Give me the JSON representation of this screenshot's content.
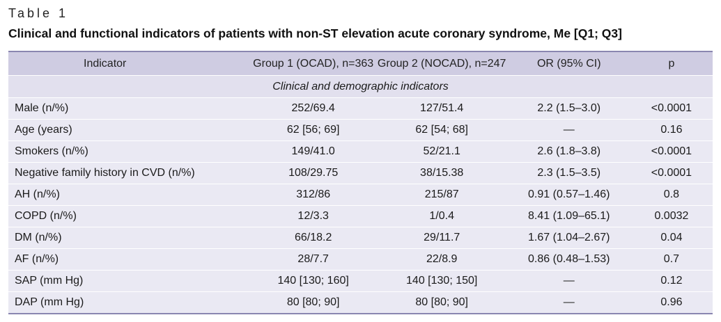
{
  "table_label": "Table 1",
  "table_title": "Clinical and functional indicators of patients with non-ST elevation acute coronary syndrome, Me [Q1; Q3]",
  "headers": [
    "Indicator",
    "Group 1 (OCAD), n=363",
    "Group 2 (NOCAD), n=247",
    "OR (95% CI)",
    "p"
  ],
  "section": "Clinical and demographic indicators",
  "rows": [
    [
      "Male (n/%)",
      "252/69.4",
      "127/51.4",
      "2.2 (1.5–3.0)",
      "<0.0001"
    ],
    [
      "Age (years)",
      "62 [56; 69]",
      "62 [54; 68]",
      "—",
      "0.16"
    ],
    [
      "Smokers (n/%)",
      "149/41.0",
      "52/21.1",
      "2.6 (1.8–3.8)",
      "<0.0001"
    ],
    [
      "Negative family history in CVD (n/%)",
      "108/29.75",
      "38/15.38",
      "2.3 (1.5–3.5)",
      "<0.0001"
    ],
    [
      "AH (n/%)",
      "312/86",
      "215/87",
      "0.91 (0.57–1.46)",
      "0.8"
    ],
    [
      "COPD (n/%)",
      "12/3.3",
      "1/0.4",
      "8.41 (1.09–65.1)",
      "0.0032"
    ],
    [
      "DM (n/%)",
      "66/18.2",
      "29/11.7",
      "1.67 (1.04–2.67)",
      "0.04"
    ],
    [
      "AF (n/%)",
      "28/7.7",
      "22/8.9",
      "0.86 (0.48–1.53)",
      "0.7"
    ],
    [
      "SAP (mm Hg)",
      "140 [130; 160]",
      "140 [130; 150]",
      "—",
      "0.12"
    ],
    [
      "DAP (mm Hg)",
      "80 [80; 90]",
      "80 [80; 90]",
      "—",
      "0.96"
    ]
  ]
}
